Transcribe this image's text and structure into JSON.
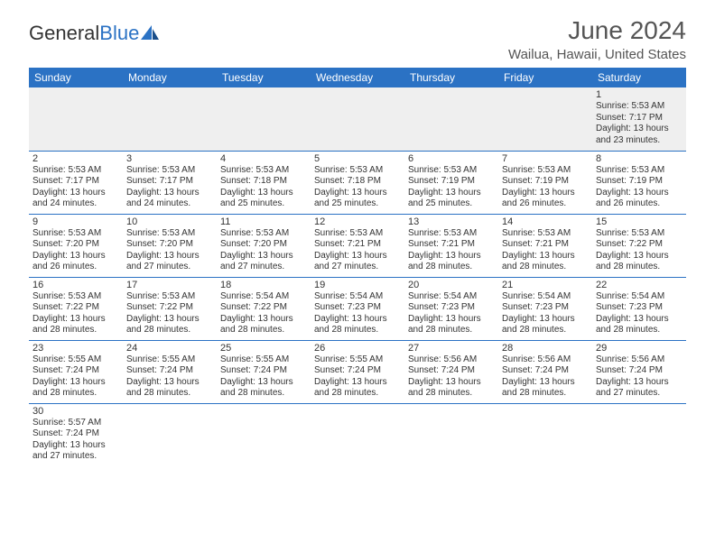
{
  "logo": {
    "text1": "General",
    "text2": "Blue"
  },
  "title": "June 2024",
  "location": "Wailua, Hawaii, United States",
  "colors": {
    "header_bg": "#2b72c4",
    "header_text": "#ffffff",
    "border": "#2b72c4",
    "empty_bg": "#efefef"
  },
  "weekdays": [
    "Sunday",
    "Monday",
    "Tuesday",
    "Wednesday",
    "Thursday",
    "Friday",
    "Saturday"
  ],
  "grid": [
    [
      null,
      null,
      null,
      null,
      null,
      null,
      {
        "n": "1",
        "sunrise": "Sunrise: 5:53 AM",
        "sunset": "Sunset: 7:17 PM",
        "day1": "Daylight: 13 hours",
        "day2": "and 23 minutes."
      }
    ],
    [
      {
        "n": "2",
        "sunrise": "Sunrise: 5:53 AM",
        "sunset": "Sunset: 7:17 PM",
        "day1": "Daylight: 13 hours",
        "day2": "and 24 minutes."
      },
      {
        "n": "3",
        "sunrise": "Sunrise: 5:53 AM",
        "sunset": "Sunset: 7:17 PM",
        "day1": "Daylight: 13 hours",
        "day2": "and 24 minutes."
      },
      {
        "n": "4",
        "sunrise": "Sunrise: 5:53 AM",
        "sunset": "Sunset: 7:18 PM",
        "day1": "Daylight: 13 hours",
        "day2": "and 25 minutes."
      },
      {
        "n": "5",
        "sunrise": "Sunrise: 5:53 AM",
        "sunset": "Sunset: 7:18 PM",
        "day1": "Daylight: 13 hours",
        "day2": "and 25 minutes."
      },
      {
        "n": "6",
        "sunrise": "Sunrise: 5:53 AM",
        "sunset": "Sunset: 7:19 PM",
        "day1": "Daylight: 13 hours",
        "day2": "and 25 minutes."
      },
      {
        "n": "7",
        "sunrise": "Sunrise: 5:53 AM",
        "sunset": "Sunset: 7:19 PM",
        "day1": "Daylight: 13 hours",
        "day2": "and 26 minutes."
      },
      {
        "n": "8",
        "sunrise": "Sunrise: 5:53 AM",
        "sunset": "Sunset: 7:19 PM",
        "day1": "Daylight: 13 hours",
        "day2": "and 26 minutes."
      }
    ],
    [
      {
        "n": "9",
        "sunrise": "Sunrise: 5:53 AM",
        "sunset": "Sunset: 7:20 PM",
        "day1": "Daylight: 13 hours",
        "day2": "and 26 minutes."
      },
      {
        "n": "10",
        "sunrise": "Sunrise: 5:53 AM",
        "sunset": "Sunset: 7:20 PM",
        "day1": "Daylight: 13 hours",
        "day2": "and 27 minutes."
      },
      {
        "n": "11",
        "sunrise": "Sunrise: 5:53 AM",
        "sunset": "Sunset: 7:20 PM",
        "day1": "Daylight: 13 hours",
        "day2": "and 27 minutes."
      },
      {
        "n": "12",
        "sunrise": "Sunrise: 5:53 AM",
        "sunset": "Sunset: 7:21 PM",
        "day1": "Daylight: 13 hours",
        "day2": "and 27 minutes."
      },
      {
        "n": "13",
        "sunrise": "Sunrise: 5:53 AM",
        "sunset": "Sunset: 7:21 PM",
        "day1": "Daylight: 13 hours",
        "day2": "and 28 minutes."
      },
      {
        "n": "14",
        "sunrise": "Sunrise: 5:53 AM",
        "sunset": "Sunset: 7:21 PM",
        "day1": "Daylight: 13 hours",
        "day2": "and 28 minutes."
      },
      {
        "n": "15",
        "sunrise": "Sunrise: 5:53 AM",
        "sunset": "Sunset: 7:22 PM",
        "day1": "Daylight: 13 hours",
        "day2": "and 28 minutes."
      }
    ],
    [
      {
        "n": "16",
        "sunrise": "Sunrise: 5:53 AM",
        "sunset": "Sunset: 7:22 PM",
        "day1": "Daylight: 13 hours",
        "day2": "and 28 minutes."
      },
      {
        "n": "17",
        "sunrise": "Sunrise: 5:53 AM",
        "sunset": "Sunset: 7:22 PM",
        "day1": "Daylight: 13 hours",
        "day2": "and 28 minutes."
      },
      {
        "n": "18",
        "sunrise": "Sunrise: 5:54 AM",
        "sunset": "Sunset: 7:22 PM",
        "day1": "Daylight: 13 hours",
        "day2": "and 28 minutes."
      },
      {
        "n": "19",
        "sunrise": "Sunrise: 5:54 AM",
        "sunset": "Sunset: 7:23 PM",
        "day1": "Daylight: 13 hours",
        "day2": "and 28 minutes."
      },
      {
        "n": "20",
        "sunrise": "Sunrise: 5:54 AM",
        "sunset": "Sunset: 7:23 PM",
        "day1": "Daylight: 13 hours",
        "day2": "and 28 minutes."
      },
      {
        "n": "21",
        "sunrise": "Sunrise: 5:54 AM",
        "sunset": "Sunset: 7:23 PM",
        "day1": "Daylight: 13 hours",
        "day2": "and 28 minutes."
      },
      {
        "n": "22",
        "sunrise": "Sunrise: 5:54 AM",
        "sunset": "Sunset: 7:23 PM",
        "day1": "Daylight: 13 hours",
        "day2": "and 28 minutes."
      }
    ],
    [
      {
        "n": "23",
        "sunrise": "Sunrise: 5:55 AM",
        "sunset": "Sunset: 7:24 PM",
        "day1": "Daylight: 13 hours",
        "day2": "and 28 minutes."
      },
      {
        "n": "24",
        "sunrise": "Sunrise: 5:55 AM",
        "sunset": "Sunset: 7:24 PM",
        "day1": "Daylight: 13 hours",
        "day2": "and 28 minutes."
      },
      {
        "n": "25",
        "sunrise": "Sunrise: 5:55 AM",
        "sunset": "Sunset: 7:24 PM",
        "day1": "Daylight: 13 hours",
        "day2": "and 28 minutes."
      },
      {
        "n": "26",
        "sunrise": "Sunrise: 5:55 AM",
        "sunset": "Sunset: 7:24 PM",
        "day1": "Daylight: 13 hours",
        "day2": "and 28 minutes."
      },
      {
        "n": "27",
        "sunrise": "Sunrise: 5:56 AM",
        "sunset": "Sunset: 7:24 PM",
        "day1": "Daylight: 13 hours",
        "day2": "and 28 minutes."
      },
      {
        "n": "28",
        "sunrise": "Sunrise: 5:56 AM",
        "sunset": "Sunset: 7:24 PM",
        "day1": "Daylight: 13 hours",
        "day2": "and 28 minutes."
      },
      {
        "n": "29",
        "sunrise": "Sunrise: 5:56 AM",
        "sunset": "Sunset: 7:24 PM",
        "day1": "Daylight: 13 hours",
        "day2": "and 27 minutes."
      }
    ],
    [
      {
        "n": "30",
        "sunrise": "Sunrise: 5:57 AM",
        "sunset": "Sunset: 7:24 PM",
        "day1": "Daylight: 13 hours",
        "day2": "and 27 minutes."
      },
      null,
      null,
      null,
      null,
      null,
      null
    ]
  ]
}
